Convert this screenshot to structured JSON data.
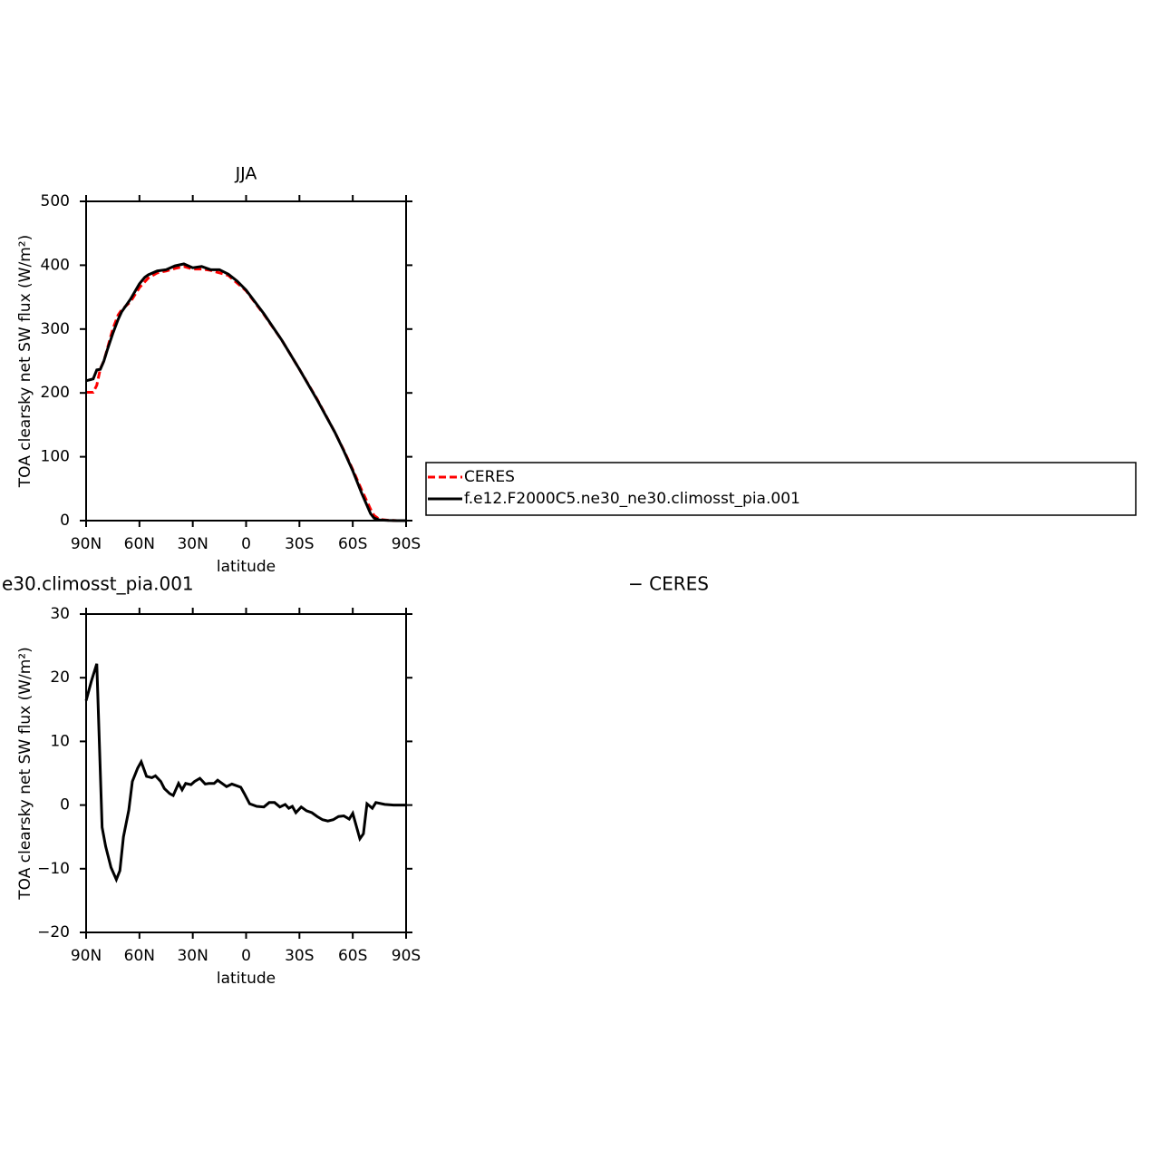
{
  "chart_data": [
    {
      "type": "line",
      "title": "JJA",
      "x_label": "latitude",
      "y_label": "TOA clearsky net SW flux (W/m²)",
      "xlim": [
        90,
        -90
      ],
      "xticks": [
        {
          "value": 90,
          "label": "90N"
        },
        {
          "value": 60,
          "label": "60N"
        },
        {
          "value": 30,
          "label": "30N"
        },
        0,
        {
          "value": -30,
          "label": "30S"
        },
        {
          "value": -60,
          "label": "60S"
        },
        {
          "value": -90,
          "label": "90S"
        }
      ],
      "ylim": [
        0,
        500
      ],
      "yticks": [
        0,
        100,
        200,
        300,
        400,
        500
      ],
      "legend": "right",
      "series": [
        {
          "name": "CERES",
          "color": "#ff0000",
          "line_style": "dashed",
          "x": [
            90,
            86,
            84,
            82,
            80,
            78,
            75,
            72,
            70,
            65,
            60,
            55,
            50,
            45,
            40,
            35,
            30,
            25,
            20,
            15,
            10,
            5,
            0,
            -10,
            -20,
            -30,
            -40,
            -50,
            -55,
            -60,
            -65,
            -70,
            -72,
            -75,
            -80,
            -85,
            -90
          ],
          "values": [
            201,
            201,
            212,
            238,
            250,
            270,
            300,
            322,
            330,
            343,
            365,
            380,
            388,
            391,
            395,
            398,
            394,
            394,
            392,
            388,
            384,
            372,
            360,
            323,
            283,
            237,
            190,
            138,
            110,
            80,
            48,
            18,
            8,
            2,
            0.5,
            0,
            0
          ]
        },
        {
          "name": "f.e12.F2000C5.ne30_ne30.climosst_pia.001",
          "color": "#000000",
          "line_style": "solid",
          "x": [
            90,
            86,
            84,
            82,
            80,
            78,
            75,
            72,
            70,
            65,
            60,
            57,
            55,
            50,
            45,
            40,
            35,
            30,
            25,
            20,
            15,
            10,
            5,
            0,
            -10,
            -20,
            -30,
            -40,
            -50,
            -55,
            -60,
            -65,
            -70,
            -72,
            -75,
            -80,
            -85,
            -90
          ],
          "values": [
            219,
            222,
            236,
            237,
            250,
            268,
            293,
            315,
            327,
            347,
            371,
            381,
            385,
            391,
            393,
            399,
            402,
            396,
            398,
            393,
            393,
            386,
            375,
            361,
            324,
            283,
            237,
            189,
            138,
            109,
            78,
            43,
            11,
            4,
            1,
            0.3,
            0,
            0
          ]
        }
      ]
    },
    {
      "type": "line",
      "title_left": "e30.climosst_pia.001",
      "title_right": "− CERES",
      "x_label": "latitude",
      "y_label": "TOA clearsky net SW flux (W/m²)",
      "xlim": [
        90,
        -90
      ],
      "xticks": [
        {
          "value": 90,
          "label": "90N"
        },
        {
          "value": 60,
          "label": "60N"
        },
        {
          "value": 30,
          "label": "30N"
        },
        0,
        {
          "value": -30,
          "label": "30S"
        },
        {
          "value": -60,
          "label": "60S"
        },
        {
          "value": -90,
          "label": "90S"
        }
      ],
      "ylim": [
        -20,
        30
      ],
      "yticks": [
        {
          "value": -20,
          "label": "−20"
        },
        {
          "value": -10,
          "label": "−10"
        },
        0,
        10,
        20,
        30
      ],
      "series": [
        {
          "color": "#000000",
          "line_style": "solid",
          "x": [
            90,
            87,
            84,
            81,
            79,
            76,
            73,
            71,
            69,
            66,
            64,
            61,
            59,
            56,
            53,
            51,
            48,
            46,
            43,
            41,
            38,
            36,
            34,
            31,
            29,
            26,
            23,
            21,
            18,
            16,
            13,
            11,
            8,
            6,
            3,
            1,
            -2,
            -6,
            -10,
            -13,
            -16,
            -19,
            -22,
            -24,
            -26,
            -28,
            -31,
            -34,
            -37,
            -40,
            -43,
            -46,
            -49,
            -52,
            -55,
            -58,
            -60,
            -64,
            -66,
            -68,
            -71,
            -73,
            -78,
            -83,
            -90
          ],
          "values": [
            16.4,
            19.5,
            22.2,
            -3.5,
            -6.5,
            -9.8,
            -11.7,
            -10.3,
            -5,
            -0.8,
            3.7,
            5.8,
            6.8,
            4.5,
            4.3,
            4.6,
            3.7,
            2.6,
            1.8,
            1.5,
            3.4,
            2.4,
            3.4,
            3.2,
            3.7,
            4.2,
            3.3,
            3.4,
            3.4,
            3.9,
            3.3,
            2.9,
            3.3,
            3.1,
            2.8,
            1.8,
            0.2,
            -0.2,
            -0.3,
            0.4,
            0.4,
            -0.3,
            0.1,
            -0.5,
            -0.2,
            -1.2,
            -0.3,
            -0.9,
            -1.2,
            -1.8,
            -2.3,
            -2.5,
            -2.3,
            -1.8,
            -1.7,
            -2.2,
            -1.3,
            -5.3,
            -4.5,
            0.2,
            -0.5,
            0.4,
            0.1,
            0,
            0
          ]
        }
      ]
    }
  ]
}
